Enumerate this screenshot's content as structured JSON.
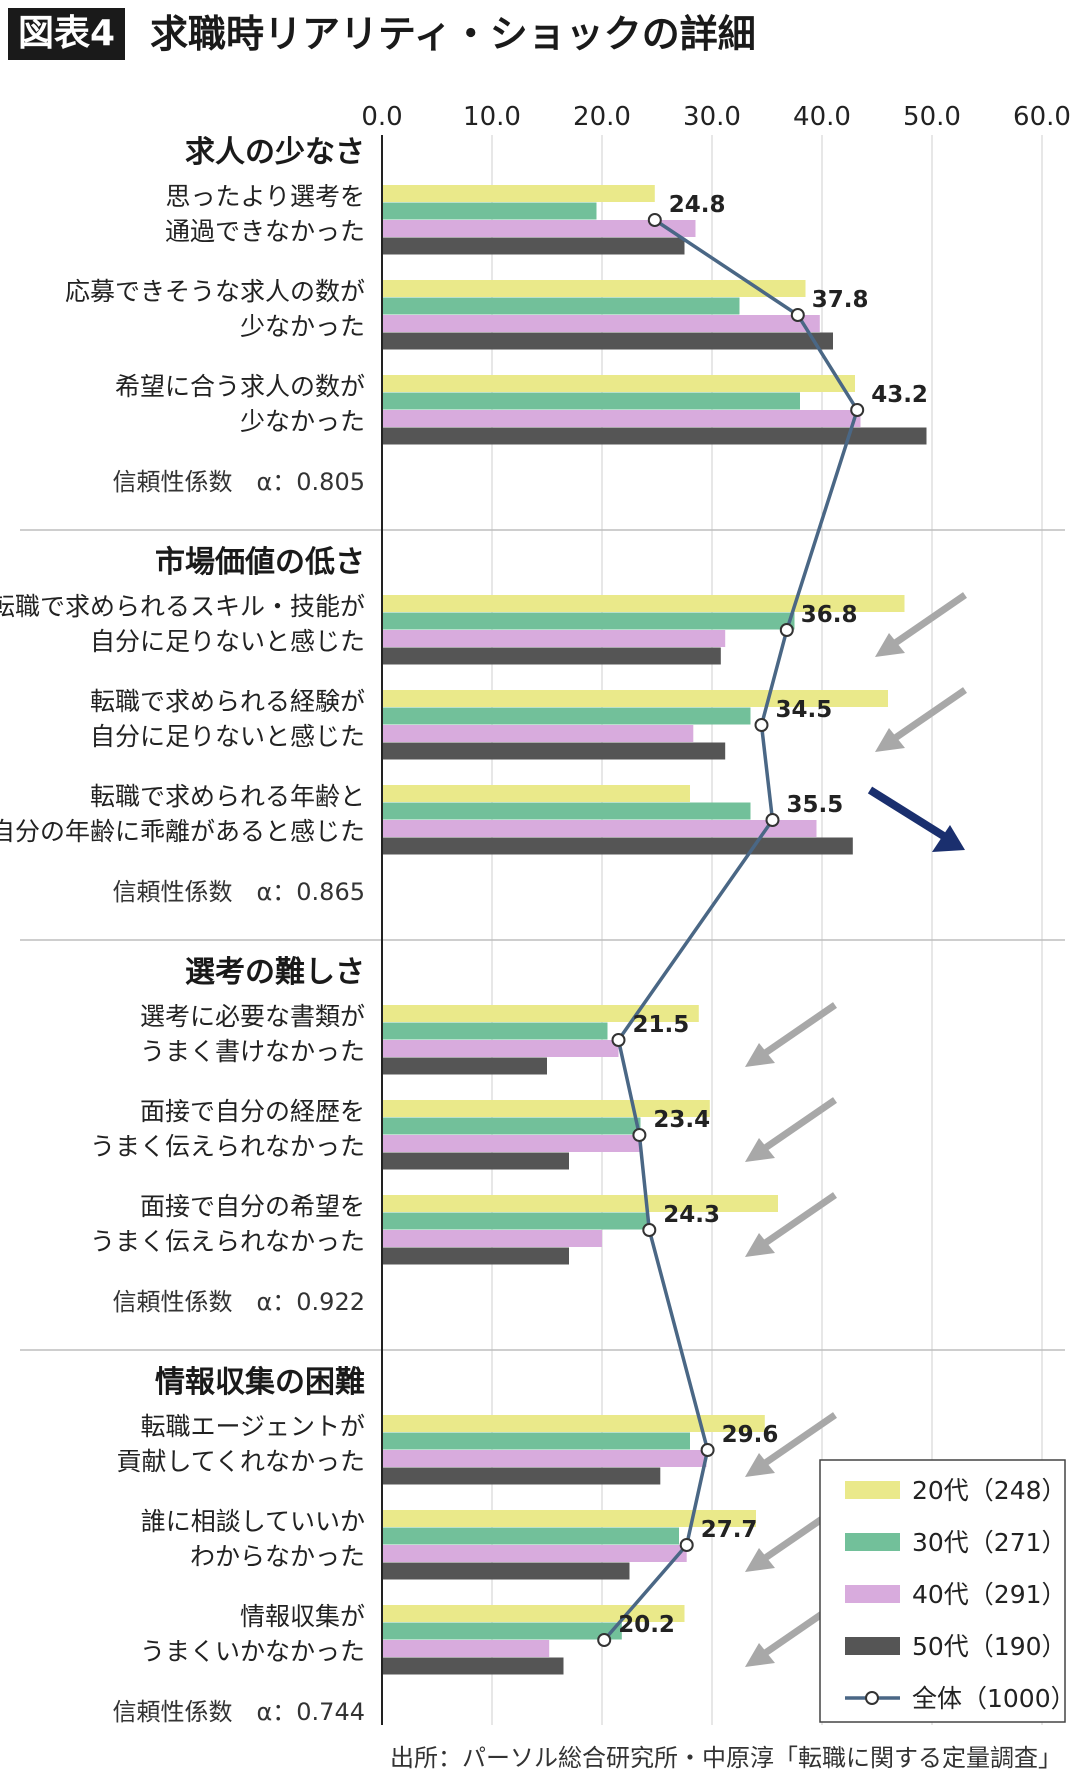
{
  "header": {
    "badge": "図表4",
    "title": "求職時リアリティ・ショックの詳細"
  },
  "source": "出所：パーソル総合研究所・中原淳「転職に関する定量調査」",
  "colors": {
    "20s": "#eae98a",
    "30s": "#72c09a",
    "40s": "#d8abdd",
    "50s": "#555555",
    "overall_line": "#4a6785",
    "arrow_gray": "#a8a8a8",
    "arrow_navy": "#1a2f6e"
  },
  "chart_data": {
    "type": "bar",
    "orientation": "horizontal",
    "xlim": [
      0,
      60
    ],
    "x_ticks": [
      "0.0",
      "10.0",
      "20.0",
      "30.0",
      "40.0",
      "50.0",
      "60.0"
    ],
    "legend_position": "bottom-right",
    "legend": [
      {
        "key": "20s",
        "label": "20代（248）"
      },
      {
        "key": "30s",
        "label": "30代（271）"
      },
      {
        "key": "40s",
        "label": "40代（291）"
      },
      {
        "key": "50s",
        "label": "50代（190）"
      },
      {
        "key": "overall",
        "label": "全体（1000）"
      }
    ],
    "groups": [
      {
        "title": "求人の少なさ",
        "reliability": "信頼性係数　α：0.805",
        "items": [
          {
            "label": [
              "思ったより選考を",
              "通過できなかった"
            ],
            "values": [
              24.8,
              19.5,
              28.5,
              27.5
            ],
            "overall": 24.8,
            "overall_label": "24.8",
            "arrow": null
          },
          {
            "label": [
              "応募できそうな求人の数が",
              "少なかった"
            ],
            "values": [
              38.5,
              32.5,
              39.8,
              41.0
            ],
            "overall": 37.8,
            "overall_label": "37.8",
            "arrow": null
          },
          {
            "label": [
              "希望に合う求人の数が",
              "少なかった"
            ],
            "values": [
              43.0,
              38.0,
              43.5,
              49.5
            ],
            "overall": 43.2,
            "overall_label": "43.2",
            "arrow": null
          }
        ]
      },
      {
        "title": "市場価値の低さ",
        "reliability": "信頼性係数　α：0.865",
        "items": [
          {
            "label": [
              "転職で求められるスキル・技能が",
              "自分に足りないと感じた"
            ],
            "values": [
              47.5,
              37.5,
              31.2,
              30.8
            ],
            "overall": 36.8,
            "overall_label": "36.8",
            "arrow": "gray"
          },
          {
            "label": [
              "転職で求められる経験が",
              "自分に足りないと感じた"
            ],
            "values": [
              46.0,
              33.5,
              28.3,
              31.2
            ],
            "overall": 34.5,
            "overall_label": "34.5",
            "arrow": "gray"
          },
          {
            "label": [
              "転職で求められる年齢と",
              "自分の年齢に乖離があると感じた"
            ],
            "values": [
              28.0,
              33.5,
              39.5,
              42.8
            ],
            "overall": 35.5,
            "overall_label": "35.5",
            "arrow": "navy"
          }
        ]
      },
      {
        "title": "選考の難しさ",
        "reliability": "信頼性係数　α：0.922",
        "items": [
          {
            "label": [
              "選考に必要な書類が",
              "うまく書けなかった"
            ],
            "values": [
              28.8,
              20.5,
              21.5,
              15.0
            ],
            "overall": 21.5,
            "overall_label": "21.5",
            "arrow": "gray"
          },
          {
            "label": [
              "面接で自分の経歴を",
              "うまく伝えられなかった"
            ],
            "values": [
              29.8,
              23.5,
              23.5,
              17.0
            ],
            "overall": 23.4,
            "overall_label": "23.4",
            "arrow": "gray"
          },
          {
            "label": [
              "面接で自分の希望を",
              "うまく伝えられなかった"
            ],
            "values": [
              36.0,
              24.2,
              20.0,
              17.0
            ],
            "overall": 24.3,
            "overall_label": "24.3",
            "arrow": "gray"
          }
        ]
      },
      {
        "title": "情報収集の困難",
        "reliability": "信頼性係数　α：0.744",
        "items": [
          {
            "label": [
              "転職エージェントが",
              "貢献してくれなかった"
            ],
            "values": [
              34.8,
              28.0,
              29.5,
              25.3
            ],
            "overall": 29.6,
            "overall_label": "29.6",
            "arrow": "gray"
          },
          {
            "label": [
              "誰に相談していいか",
              "わからなかった"
            ],
            "values": [
              34.0,
              27.0,
              27.7,
              22.5
            ],
            "overall": 27.7,
            "overall_label": "27.7",
            "arrow": "gray"
          },
          {
            "label": [
              "情報収集が",
              "うまくいかなかった"
            ],
            "values": [
              27.5,
              21.8,
              15.2,
              16.5
            ],
            "overall": 20.2,
            "overall_label": "20.2",
            "arrow": "gray"
          }
        ]
      }
    ]
  }
}
